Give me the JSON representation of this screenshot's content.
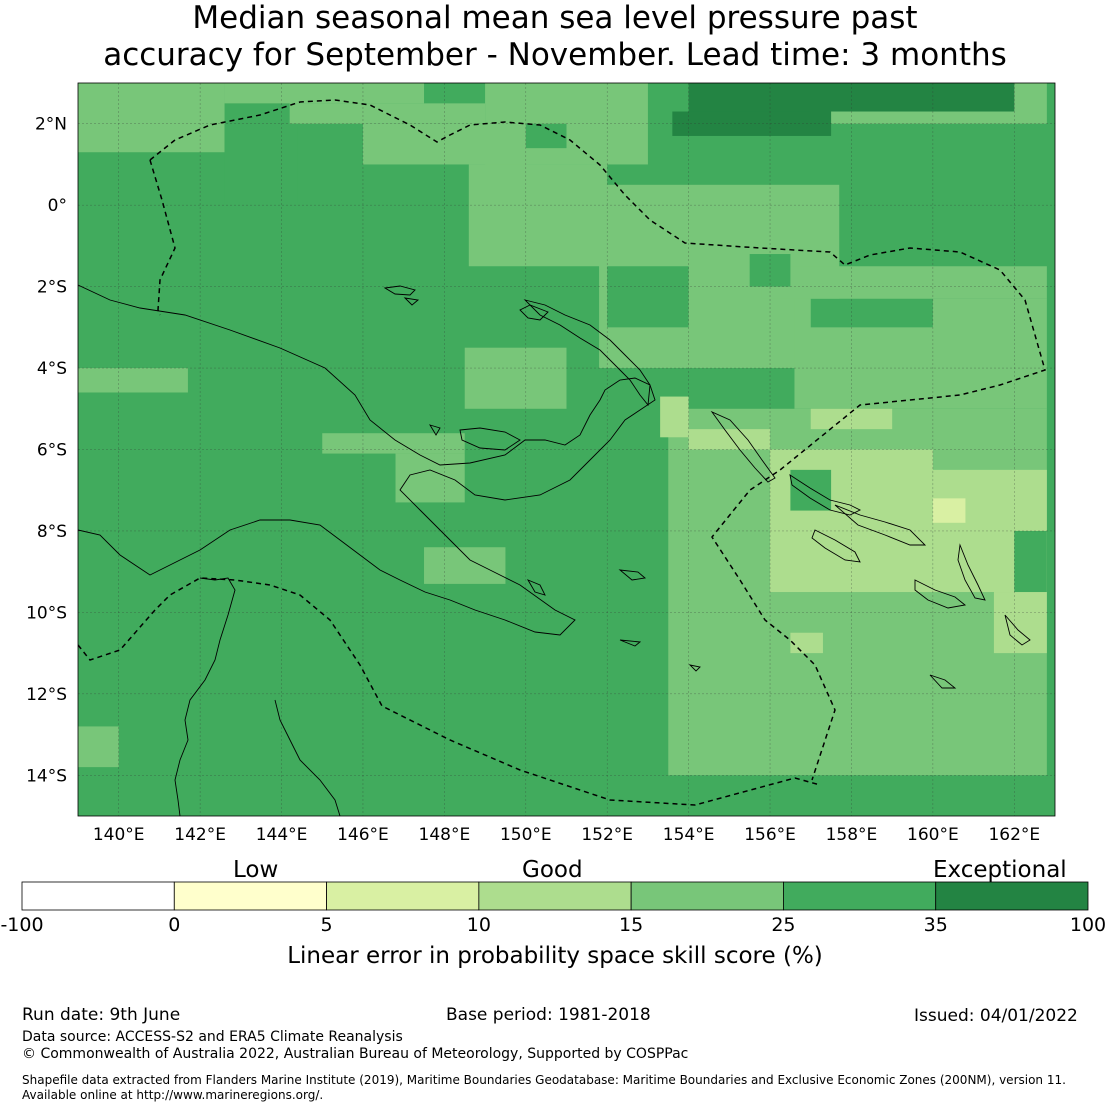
{
  "title_line1": "Median seasonal mean sea level pressure past",
  "title_line2": "accuracy for September - November. Lead time: 3 months",
  "map": {
    "lon_range": [
      139,
      163
    ],
    "lat_range": [
      -15,
      3
    ],
    "lon_ticks": [
      "140°E",
      "142°E",
      "144°E",
      "146°E",
      "148°E",
      "150°E",
      "152°E",
      "154°E",
      "156°E",
      "158°E",
      "160°E",
      "162°E"
    ],
    "lat_ticks": [
      "2°N",
      "0°",
      "2°S",
      "4°S",
      "6°S",
      "8°S",
      "10°S",
      "12°S",
      "14°S"
    ],
    "lon_tick_values": [
      140,
      142,
      144,
      146,
      148,
      150,
      152,
      154,
      156,
      158,
      160,
      162
    ],
    "lat_tick_values": [
      2,
      0,
      -2,
      -4,
      -6,
      -8,
      -10,
      -12,
      -14
    ],
    "background_category": "25-35",
    "regions": [
      {
        "category": "15-25",
        "lon": [
          139,
          142.6
        ],
        "lat": [
          1.3,
          3
        ]
      },
      {
        "category": "15-25",
        "lon": [
          142.6,
          147.5
        ],
        "lat": [
          2.5,
          3
        ]
      },
      {
        "category": "15-25",
        "lon": [
          144.2,
          149
        ],
        "lat": [
          2,
          2.5
        ]
      },
      {
        "category": "15-25",
        "lon": [
          146,
          150
        ],
        "lat": [
          1,
          2
        ]
      },
      {
        "category": "15-25",
        "lon": [
          148.6,
          152
        ],
        "lat": [
          -1.5,
          1
        ]
      },
      {
        "category": "15-25",
        "lon": [
          149,
          153
        ],
        "lat": [
          1,
          3
        ]
      },
      {
        "category": "15-25",
        "lon": [
          151.8,
          157.7
        ],
        "lat": [
          -4,
          0.5
        ]
      },
      {
        "category": "15-25",
        "lon": [
          155.8,
          162.8
        ],
        "lat": [
          -2.3,
          -1.5
        ]
      },
      {
        "category": "15-25",
        "lon": [
          156.6,
          162.8
        ],
        "lat": [
          -5,
          -2.3
        ]
      },
      {
        "category": "15-25",
        "lon": [
          157,
          162.8
        ],
        "lat": [
          2,
          3
        ]
      },
      {
        "category": "15-25",
        "lon": [
          148.5,
          151
        ],
        "lat": [
          -5,
          -3.5
        ]
      },
      {
        "category": "15-25",
        "lon": [
          145,
          148.5
        ],
        "lat": [
          -6.1,
          -5.6
        ]
      },
      {
        "category": "15-25",
        "lon": [
          146.8,
          148.5
        ],
        "lat": [
          -7.3,
          -6.1
        ]
      },
      {
        "category": "15-25",
        "lon": [
          147.5,
          149.5
        ],
        "lat": [
          -9.3,
          -8.4
        ]
      },
      {
        "category": "15-25",
        "lon": [
          139,
          141.7
        ],
        "lat": [
          -4.6,
          -4
        ]
      },
      {
        "category": "15-25",
        "lon": [
          139,
          140
        ],
        "lat": [
          -13.8,
          -12.8
        ]
      },
      {
        "category": "15-25",
        "lon": [
          153.5,
          162.8
        ],
        "lat": [
          -14,
          -5
        ]
      },
      {
        "category": "10-15",
        "lon": [
          154,
          156
        ],
        "lat": [
          -6,
          -5.5
        ]
      },
      {
        "category": "10-15",
        "lon": [
          156,
          160
        ],
        "lat": [
          -9.5,
          -6
        ]
      },
      {
        "category": "10-15",
        "lon": [
          157,
          159
        ],
        "lat": [
          -5.5,
          -5
        ]
      },
      {
        "category": "10-15",
        "lon": [
          160,
          162.8
        ],
        "lat": [
          -9.5,
          -6.5
        ]
      },
      {
        "category": "10-15",
        "lon": [
          161.5,
          162.8
        ],
        "lat": [
          -11,
          -9.5
        ]
      },
      {
        "category": "10-15",
        "lon": [
          156.5,
          157.3
        ],
        "lat": [
          -11,
          -10.5
        ]
      },
      {
        "category": "10-15",
        "lon": [
          153.3,
          154
        ],
        "lat": [
          -5.7,
          -4.7
        ]
      },
      {
        "category": "5-10",
        "lon": [
          160,
          160.8
        ],
        "lat": [
          -7.8,
          -7.2
        ]
      },
      {
        "category": "25-35",
        "lon": [
          162,
          162.8
        ],
        "lat": [
          -9.5,
          -8
        ]
      },
      {
        "category": "25-35",
        "lon": [
          156.5,
          157.5
        ],
        "lat": [
          -7.5,
          -6.5
        ]
      },
      {
        "category": "25-35",
        "lon": [
          142.6,
          144.4
        ],
        "lat": [
          0,
          2
        ]
      },
      {
        "category": "25-35",
        "lon": [
          152,
          154
        ],
        "lat": [
          -3,
          -1.5
        ]
      },
      {
        "category": "25-35",
        "lon": [
          150,
          151
        ],
        "lat": [
          1.4,
          2
        ]
      },
      {
        "category": "25-35",
        "lon": [
          157,
          160
        ],
        "lat": [
          -3,
          -2.3
        ]
      },
      {
        "category": "25-35",
        "lon": [
          155.5,
          156.5
        ],
        "lat": [
          -2,
          -1.2
        ]
      },
      {
        "category": "35-100",
        "lon": [
          154,
          162
        ],
        "lat": [
          2.3,
          3
        ]
      },
      {
        "category": "35-100",
        "lon": [
          153.6,
          157.5
        ],
        "lat": [
          1.7,
          2.3
        ]
      }
    ]
  },
  "legend": {
    "words": [
      "Low",
      "Good",
      "Exceptional"
    ],
    "bins": [
      {
        "from": -100,
        "to": 0,
        "color": "#ffffff"
      },
      {
        "from": 0,
        "to": 5,
        "color": "#ffffcc"
      },
      {
        "from": 5,
        "to": 10,
        "color": "#d9f0a3"
      },
      {
        "from": 10,
        "to": 15,
        "color": "#addd8e"
      },
      {
        "from": 15,
        "to": 25,
        "color": "#78c679"
      },
      {
        "from": 25,
        "to": 35,
        "color": "#41ab5d"
      },
      {
        "from": 35,
        "to": 100,
        "color": "#238443"
      }
    ],
    "tick_labels": [
      "-100",
      "0",
      "5",
      "10",
      "15",
      "25",
      "35",
      "100"
    ],
    "label": "Linear error in probability space skill score (%)"
  },
  "footer": {
    "run_date": "Run date: 9th June",
    "base_period": "Base period: 1981-2018",
    "issued": "Issued: 04/01/2022",
    "data_source": "Data source: ACCESS-S2 and ERA5 Climate Reanalysis",
    "copyright": "© Commonwealth of Australia 2022, Australian Bureau of Meteorology, Supported by COSPPac",
    "shapefile_line1": "Shapefile data extracted from Flanders Marine Institute (2019), Maritime Boundaries Geodatabase: Maritime Boundaries and Exclusive Economic Zones (200NM), version 11.",
    "shapefile_line2": "Available online at http://www.marineregions.org/."
  },
  "colors": {
    "15-25": "#78c679",
    "25-35": "#41ab5d",
    "10-15": "#addd8e",
    "5-10": "#d9f0a3",
    "35-100": "#238443"
  }
}
